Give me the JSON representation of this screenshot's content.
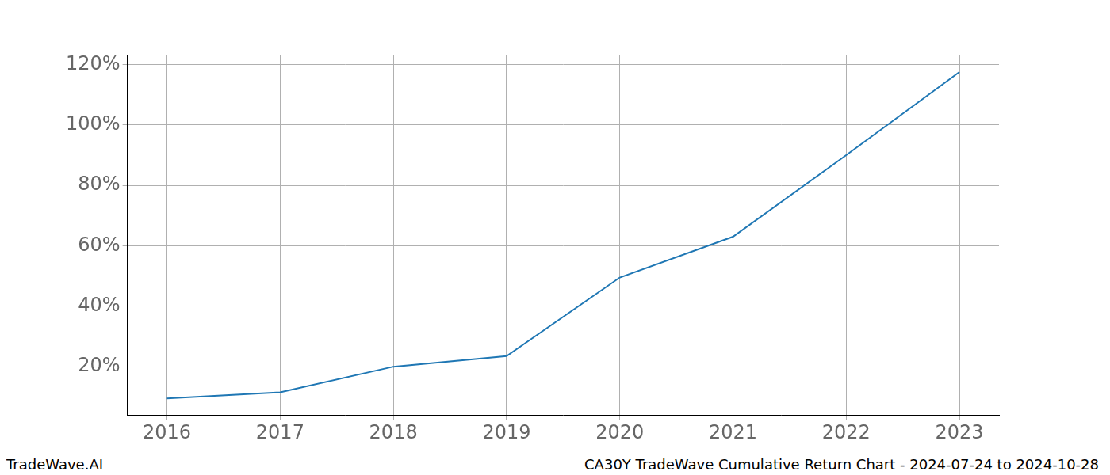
{
  "chart_data": {
    "type": "line",
    "title": "CA30Y TradeWave Cumulative Return Chart - 2024-07-24 to 2024-10-28",
    "source": "TradeWave.AI",
    "x": [
      2016,
      2017,
      2018,
      2019,
      2020,
      2021,
      2022,
      2023
    ],
    "values": [
      9.5,
      11.5,
      20,
      23.5,
      49.5,
      63,
      90,
      117.5
    ],
    "color": "#1f77b4",
    "xlim": [
      2015.65,
      2023.35
    ],
    "xticks": [
      2016,
      2017,
      2018,
      2019,
      2020,
      2021,
      2022,
      2023
    ],
    "ylim": [
      4,
      123
    ],
    "yticks": [
      {
        "value": 20,
        "label": "20%"
      },
      {
        "value": 40,
        "label": "40%"
      },
      {
        "value": 60,
        "label": "60%"
      },
      {
        "value": 80,
        "label": "80%"
      },
      {
        "value": 100,
        "label": "100%"
      },
      {
        "value": 120,
        "label": "120%"
      }
    ],
    "grid": true
  }
}
